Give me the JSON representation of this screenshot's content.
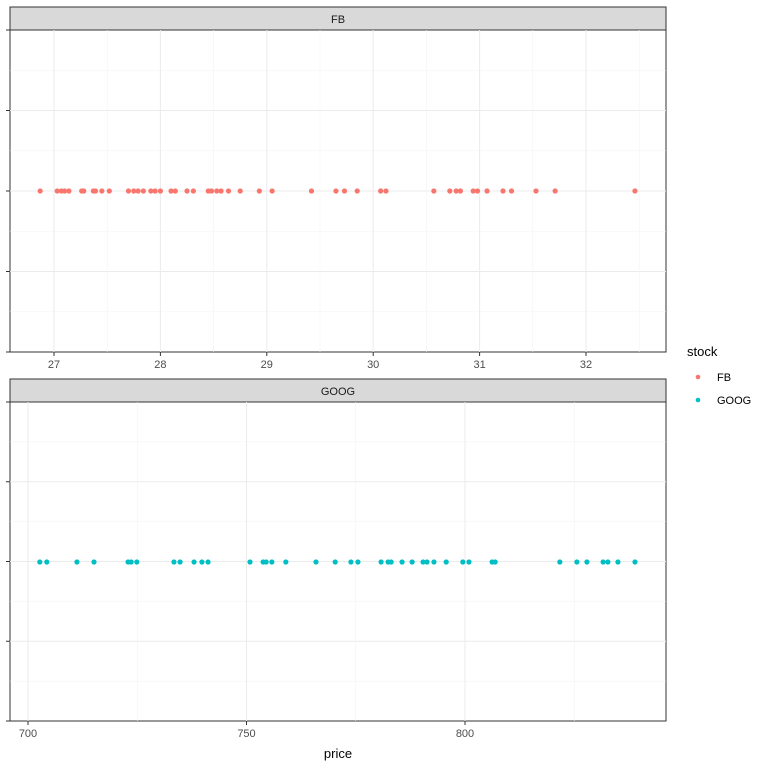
{
  "chart_data": {
    "type": "scatter",
    "xlabel": "price",
    "ylabel": "",
    "facet_by": "stock",
    "legend": {
      "title": "stock",
      "position": "right",
      "entries": [
        {
          "label": "FB",
          "color": "#F8766D"
        },
        {
          "label": "GOOG",
          "color": "#00BFC4"
        }
      ]
    },
    "grid": true,
    "panels": [
      {
        "strip": "FB",
        "xlim": [
          26.7,
          32.7
        ],
        "xticks": [
          27,
          28,
          29,
          30,
          31,
          32
        ],
        "xtick_labels": [
          "27",
          "28",
          "29",
          "30",
          "31",
          "32"
        ],
        "color": "#F8766D",
        "values": [
          26.87,
          27.03,
          27.07,
          27.1,
          27.14,
          27.26,
          27.28,
          27.37,
          27.39,
          27.45,
          27.52,
          27.7,
          27.75,
          27.79,
          27.84,
          27.91,
          27.95,
          28.0,
          28.1,
          28.14,
          28.25,
          28.31,
          28.45,
          28.48,
          28.53,
          28.57,
          28.64,
          28.75,
          28.93,
          29.05,
          29.42,
          29.65,
          29.73,
          29.85,
          30.07,
          30.12,
          30.57,
          30.72,
          30.78,
          30.82,
          30.94,
          30.98,
          31.07,
          31.22,
          31.3,
          31.53,
          31.71,
          32.46
        ]
      },
      {
        "strip": "GOOG",
        "xlim": [
          695,
          842
        ],
        "xticks": [
          700,
          750,
          800
        ],
        "xtick_labels": [
          "700",
          "750",
          "800"
        ],
        "color": "#00BFC4",
        "values": [
          702.7,
          704.3,
          711.2,
          715.1,
          722.9,
          723.6,
          724.9,
          733.4,
          734.8,
          738.0,
          739.8,
          741.2,
          750.8,
          753.8,
          754.5,
          755.8,
          759.0,
          765.9,
          770.3,
          773.9,
          775.5,
          780.8,
          782.4,
          783.1,
          785.6,
          787.9,
          790.4,
          791.3,
          792.9,
          795.7,
          799.5,
          800.9,
          806.2,
          806.9,
          821.7,
          825.6,
          827.9,
          831.6,
          832.7,
          835.0,
          838.9
        ]
      }
    ]
  },
  "labels": {
    "x_axis_title": "price",
    "legend_title": "stock",
    "legend_fb": "FB",
    "legend_goog": "GOOG",
    "strip_fb": "FB",
    "strip_goog": "GOOG"
  }
}
